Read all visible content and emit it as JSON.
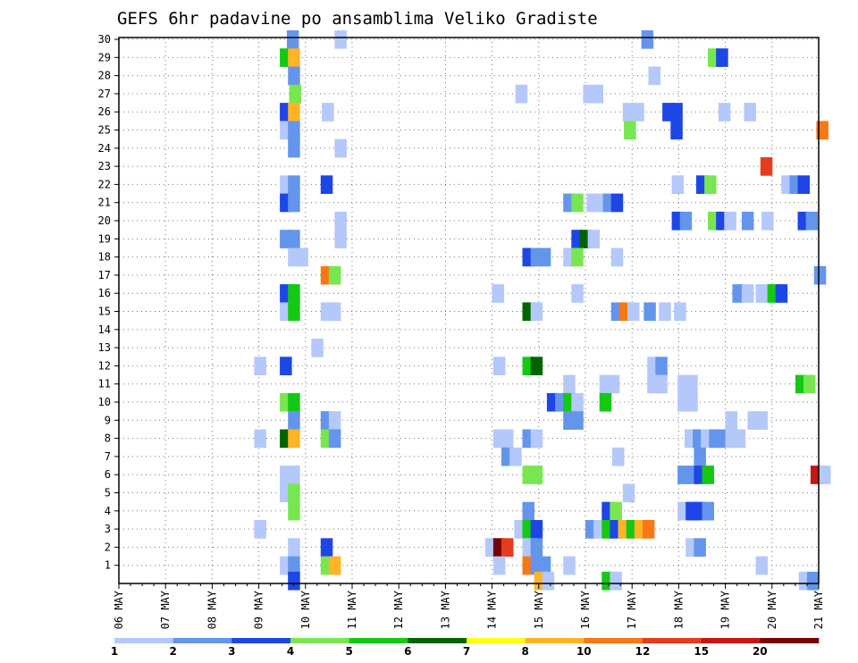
{
  "chart_data": {
    "type": "heatmap",
    "title": "GEFS 6hr padavine po ansamblima Veliko Gradiste",
    "x_labels": [
      "06 MAY",
      "07 MAY",
      "08 MAY",
      "09 MAY",
      "10 MAY",
      "11 MAY",
      "12 MAY",
      "13 MAY",
      "14 MAY",
      "15 MAY",
      "16 MAY",
      "17 MAY",
      "18 MAY",
      "19 MAY",
      "20 MAY",
      "21 MAY"
    ],
    "y_labels": [
      "1",
      "2",
      "3",
      "4",
      "5",
      "6",
      "7",
      "8",
      "9",
      "10",
      "11",
      "12",
      "13",
      "14",
      "15",
      "16",
      "17",
      "18",
      "19",
      "20",
      "21",
      "22",
      "23",
      "24",
      "25",
      "26",
      "27",
      "28",
      "29",
      "30"
    ],
    "x_unit": "6-hour step",
    "grid": "dotted",
    "legend": {
      "labels": [
        "1",
        "2",
        "3",
        "4",
        "5",
        "6",
        "7",
        "8",
        "10",
        "12",
        "15",
        "20"
      ],
      "colors": [
        "#b4c8fa",
        "#6495ed",
        "#1e46e6",
        "#78e650",
        "#14c814",
        "#006400",
        "#ffff14",
        "#ffb428",
        "#fa7814",
        "#e63c1e",
        "#c81414",
        "#780000"
      ]
    },
    "cells": [
      {
        "t": 14.4,
        "m": 30,
        "v": 2
      },
      {
        "t": 18.5,
        "m": 30,
        "v": 1
      },
      {
        "t": 44.8,
        "m": 30,
        "v": 2
      },
      {
        "t": 13.8,
        "m": 29,
        "v": 5
      },
      {
        "t": 14.5,
        "m": 29,
        "v": 8
      },
      {
        "t": 50.5,
        "m": 29,
        "v": 4
      },
      {
        "t": 51.2,
        "m": 29,
        "v": 3
      },
      {
        "t": 14.5,
        "m": 28,
        "v": 2
      },
      {
        "t": 45.4,
        "m": 28,
        "v": 1
      },
      {
        "t": 14.6,
        "m": 27,
        "v": 4
      },
      {
        "t": 34.0,
        "m": 27,
        "v": 1
      },
      {
        "t": 39.8,
        "m": 27,
        "v": 1
      },
      {
        "t": 40.5,
        "m": 27,
        "v": 1
      },
      {
        "t": 13.8,
        "m": 26,
        "v": 3
      },
      {
        "t": 14.5,
        "m": 26,
        "v": 8
      },
      {
        "t": 17.4,
        "m": 26,
        "v": 1
      },
      {
        "t": 43.2,
        "m": 26,
        "v": 1
      },
      {
        "t": 44.0,
        "m": 26,
        "v": 1
      },
      {
        "t": 46.6,
        "m": 26,
        "v": 3
      },
      {
        "t": 47.3,
        "m": 26,
        "v": 3
      },
      {
        "t": 51.4,
        "m": 26,
        "v": 1
      },
      {
        "t": 53.6,
        "m": 26,
        "v": 1
      },
      {
        "t": 13.8,
        "m": 25,
        "v": 1
      },
      {
        "t": 14.5,
        "m": 25,
        "v": 2
      },
      {
        "t": 43.3,
        "m": 25,
        "v": 4
      },
      {
        "t": 47.3,
        "m": 25,
        "v": 3
      },
      {
        "t": 59.8,
        "m": 25,
        "v": 9
      },
      {
        "t": 14.5,
        "m": 24,
        "v": 2
      },
      {
        "t": 18.5,
        "m": 24,
        "v": 1
      },
      {
        "t": 55.0,
        "m": 23,
        "v": 10
      },
      {
        "t": 13.8,
        "m": 22,
        "v": 1
      },
      {
        "t": 14.5,
        "m": 22,
        "v": 2
      },
      {
        "t": 17.3,
        "m": 22,
        "v": 3
      },
      {
        "t": 47.4,
        "m": 22,
        "v": 1
      },
      {
        "t": 49.5,
        "m": 22,
        "v": 3
      },
      {
        "t": 50.2,
        "m": 22,
        "v": 4
      },
      {
        "t": 56.8,
        "m": 22,
        "v": 1
      },
      {
        "t": 57.5,
        "m": 22,
        "v": 2
      },
      {
        "t": 58.2,
        "m": 22,
        "v": 3
      },
      {
        "t": 13.8,
        "m": 21,
        "v": 3
      },
      {
        "t": 14.5,
        "m": 21,
        "v": 2
      },
      {
        "t": 38.1,
        "m": 21,
        "v": 2
      },
      {
        "t": 38.8,
        "m": 21,
        "v": 4
      },
      {
        "t": 40.1,
        "m": 21,
        "v": 1
      },
      {
        "t": 40.8,
        "m": 21,
        "v": 1
      },
      {
        "t": 41.5,
        "m": 21,
        "v": 2
      },
      {
        "t": 42.2,
        "m": 21,
        "v": 3
      },
      {
        "t": 47.4,
        "m": 20,
        "v": 3
      },
      {
        "t": 48.1,
        "m": 20,
        "v": 2
      },
      {
        "t": 50.5,
        "m": 20,
        "v": 4
      },
      {
        "t": 51.2,
        "m": 20,
        "v": 3
      },
      {
        "t": 51.9,
        "m": 20,
        "v": 1
      },
      {
        "t": 53.4,
        "m": 20,
        "v": 2
      },
      {
        "t": 55.1,
        "m": 20,
        "v": 1
      },
      {
        "t": 58.2,
        "m": 20,
        "v": 3
      },
      {
        "t": 58.9,
        "m": 20,
        "v": 2
      },
      {
        "t": 18.5,
        "m": 20,
        "v": 1
      },
      {
        "t": 18.5,
        "m": 19,
        "v": 1
      },
      {
        "t": 13.8,
        "m": 19,
        "v": 2
      },
      {
        "t": 14.5,
        "m": 19,
        "v": 2
      },
      {
        "t": 38.8,
        "m": 19,
        "v": 3
      },
      {
        "t": 39.5,
        "m": 19,
        "v": 6
      },
      {
        "t": 40.2,
        "m": 19,
        "v": 1
      },
      {
        "t": 14.5,
        "m": 18,
        "v": 1
      },
      {
        "t": 15.2,
        "m": 18,
        "v": 1
      },
      {
        "t": 34.6,
        "m": 18,
        "v": 3
      },
      {
        "t": 35.3,
        "m": 18,
        "v": 2
      },
      {
        "t": 36.0,
        "m": 18,
        "v": 2
      },
      {
        "t": 38.1,
        "m": 18,
        "v": 1
      },
      {
        "t": 38.8,
        "m": 18,
        "v": 4
      },
      {
        "t": 42.2,
        "m": 18,
        "v": 1
      },
      {
        "t": 17.3,
        "m": 17,
        "v": 9
      },
      {
        "t": 18.0,
        "m": 17,
        "v": 4
      },
      {
        "t": 59.6,
        "m": 17,
        "v": 2
      },
      {
        "t": 13.8,
        "m": 16,
        "v": 3
      },
      {
        "t": 14.5,
        "m": 16,
        "v": 5
      },
      {
        "t": 32.0,
        "m": 16,
        "v": 1
      },
      {
        "t": 38.8,
        "m": 16,
        "v": 1
      },
      {
        "t": 52.6,
        "m": 16,
        "v": 2
      },
      {
        "t": 53.4,
        "m": 16,
        "v": 1
      },
      {
        "t": 54.6,
        "m": 16,
        "v": 1
      },
      {
        "t": 55.6,
        "m": 16,
        "v": 5
      },
      {
        "t": 56.3,
        "m": 16,
        "v": 3
      },
      {
        "t": 13.8,
        "m": 15,
        "v": 1
      },
      {
        "t": 14.5,
        "m": 15,
        "v": 5
      },
      {
        "t": 17.3,
        "m": 15,
        "v": 1
      },
      {
        "t": 18.0,
        "m": 15,
        "v": 1
      },
      {
        "t": 34.6,
        "m": 15,
        "v": 6
      },
      {
        "t": 35.3,
        "m": 15,
        "v": 1
      },
      {
        "t": 42.2,
        "m": 15,
        "v": 2
      },
      {
        "t": 42.9,
        "m": 15,
        "v": 9
      },
      {
        "t": 43.6,
        "m": 15,
        "v": 1
      },
      {
        "t": 45.0,
        "m": 15,
        "v": 2
      },
      {
        "t": 46.3,
        "m": 15,
        "v": 1
      },
      {
        "t": 47.6,
        "m": 15,
        "v": 1
      },
      {
        "t": 16.5,
        "m": 13,
        "v": 1
      },
      {
        "t": 13.8,
        "m": 12,
        "v": 3
      },
      {
        "t": 32.1,
        "m": 12,
        "v": 1
      },
      {
        "t": 34.6,
        "m": 12,
        "v": 5
      },
      {
        "t": 35.3,
        "m": 12,
        "v": 6
      },
      {
        "t": 45.3,
        "m": 12,
        "v": 1
      },
      {
        "t": 46.0,
        "m": 12,
        "v": 2
      },
      {
        "t": 11.6,
        "m": 12,
        "v": 1
      },
      {
        "t": 38.1,
        "m": 11,
        "v": 1
      },
      {
        "t": 41.2,
        "m": 11,
        "v": 1
      },
      {
        "t": 41.9,
        "m": 11,
        "v": 1
      },
      {
        "t": 45.3,
        "m": 11,
        "v": 1
      },
      {
        "t": 46.0,
        "m": 11,
        "v": 1
      },
      {
        "t": 47.9,
        "m": 11,
        "v": 1
      },
      {
        "t": 48.6,
        "m": 11,
        "v": 1
      },
      {
        "t": 58.0,
        "m": 11,
        "v": 5
      },
      {
        "t": 58.7,
        "m": 11,
        "v": 4
      },
      {
        "t": 13.8,
        "m": 10,
        "v": 4
      },
      {
        "t": 14.5,
        "m": 10,
        "v": 5
      },
      {
        "t": 36.7,
        "m": 10,
        "v": 3
      },
      {
        "t": 37.4,
        "m": 10,
        "v": 2
      },
      {
        "t": 38.1,
        "m": 10,
        "v": 5
      },
      {
        "t": 38.8,
        "m": 10,
        "v": 1
      },
      {
        "t": 41.2,
        "m": 10,
        "v": 5
      },
      {
        "t": 47.9,
        "m": 10,
        "v": 1
      },
      {
        "t": 48.6,
        "m": 10,
        "v": 1
      },
      {
        "t": 14.5,
        "m": 9,
        "v": 2
      },
      {
        "t": 17.3,
        "m": 9,
        "v": 2
      },
      {
        "t": 18.0,
        "m": 9,
        "v": 1
      },
      {
        "t": 38.1,
        "m": 9,
        "v": 2
      },
      {
        "t": 38.8,
        "m": 9,
        "v": 2
      },
      {
        "t": 52.0,
        "m": 9,
        "v": 1
      },
      {
        "t": 53.9,
        "m": 9,
        "v": 1
      },
      {
        "t": 54.6,
        "m": 9,
        "v": 1
      },
      {
        "t": 11.6,
        "m": 8,
        "v": 1
      },
      {
        "t": 13.8,
        "m": 8,
        "v": 6
      },
      {
        "t": 14.5,
        "m": 8,
        "v": 8
      },
      {
        "t": 17.3,
        "m": 8,
        "v": 4
      },
      {
        "t": 18.0,
        "m": 8,
        "v": 2
      },
      {
        "t": 32.1,
        "m": 8,
        "v": 1
      },
      {
        "t": 32.8,
        "m": 8,
        "v": 1
      },
      {
        "t": 34.6,
        "m": 8,
        "v": 2
      },
      {
        "t": 35.3,
        "m": 8,
        "v": 1
      },
      {
        "t": 48.5,
        "m": 8,
        "v": 1
      },
      {
        "t": 49.2,
        "m": 8,
        "v": 2
      },
      {
        "t": 49.9,
        "m": 8,
        "v": 1
      },
      {
        "t": 50.6,
        "m": 8,
        "v": 2
      },
      {
        "t": 51.3,
        "m": 8,
        "v": 2
      },
      {
        "t": 52.0,
        "m": 8,
        "v": 1
      },
      {
        "t": 52.7,
        "m": 8,
        "v": 1
      },
      {
        "t": 32.8,
        "m": 7,
        "v": 2
      },
      {
        "t": 33.5,
        "m": 7,
        "v": 1
      },
      {
        "t": 42.3,
        "m": 7,
        "v": 1
      },
      {
        "t": 49.3,
        "m": 7,
        "v": 2
      },
      {
        "t": 13.8,
        "m": 6,
        "v": 1
      },
      {
        "t": 14.5,
        "m": 6,
        "v": 1
      },
      {
        "t": 34.6,
        "m": 6,
        "v": 4
      },
      {
        "t": 35.3,
        "m": 6,
        "v": 4
      },
      {
        "t": 47.9,
        "m": 6,
        "v": 2
      },
      {
        "t": 48.6,
        "m": 6,
        "v": 2
      },
      {
        "t": 49.3,
        "m": 6,
        "v": 3
      },
      {
        "t": 50.0,
        "m": 6,
        "v": 5
      },
      {
        "t": 59.3,
        "m": 6,
        "v": 11
      },
      {
        "t": 60.0,
        "m": 6,
        "v": 1
      },
      {
        "t": 13.8,
        "m": 5,
        "v": 1
      },
      {
        "t": 14.5,
        "m": 5,
        "v": 4
      },
      {
        "t": 43.2,
        "m": 5,
        "v": 1
      },
      {
        "t": 14.5,
        "m": 4,
        "v": 4
      },
      {
        "t": 34.6,
        "m": 4,
        "v": 2
      },
      {
        "t": 41.4,
        "m": 4,
        "v": 3
      },
      {
        "t": 42.1,
        "m": 4,
        "v": 4
      },
      {
        "t": 47.9,
        "m": 4,
        "v": 1
      },
      {
        "t": 48.6,
        "m": 4,
        "v": 3
      },
      {
        "t": 49.3,
        "m": 4,
        "v": 3
      },
      {
        "t": 50.0,
        "m": 4,
        "v": 2
      },
      {
        "t": 11.6,
        "m": 3,
        "v": 1
      },
      {
        "t": 33.9,
        "m": 3,
        "v": 1
      },
      {
        "t": 34.6,
        "m": 3,
        "v": 5
      },
      {
        "t": 35.3,
        "m": 3,
        "v": 3
      },
      {
        "t": 40.0,
        "m": 3,
        "v": 2
      },
      {
        "t": 40.7,
        "m": 3,
        "v": 1
      },
      {
        "t": 41.4,
        "m": 3,
        "v": 5
      },
      {
        "t": 42.1,
        "m": 3,
        "v": 3
      },
      {
        "t": 42.8,
        "m": 3,
        "v": 8
      },
      {
        "t": 43.5,
        "m": 3,
        "v": 5
      },
      {
        "t": 44.2,
        "m": 3,
        "v": 8
      },
      {
        "t": 44.9,
        "m": 3,
        "v": 9
      },
      {
        "t": 14.5,
        "m": 2,
        "v": 1
      },
      {
        "t": 17.3,
        "m": 2,
        "v": 3
      },
      {
        "t": 31.4,
        "m": 2,
        "v": 1
      },
      {
        "t": 32.1,
        "m": 2,
        "v": 12
      },
      {
        "t": 32.8,
        "m": 2,
        "v": 10
      },
      {
        "t": 34.6,
        "m": 2,
        "v": 1
      },
      {
        "t": 35.3,
        "m": 2,
        "v": 2
      },
      {
        "t": 48.6,
        "m": 2,
        "v": 1
      },
      {
        "t": 49.3,
        "m": 2,
        "v": 2
      },
      {
        "t": 13.8,
        "m": 1,
        "v": 1
      },
      {
        "t": 14.5,
        "m": 1,
        "v": 2
      },
      {
        "t": 17.3,
        "m": 1,
        "v": 4
      },
      {
        "t": 18.0,
        "m": 1,
        "v": 8
      },
      {
        "t": 32.1,
        "m": 1,
        "v": 1
      },
      {
        "t": 34.6,
        "m": 1,
        "v": 9
      },
      {
        "t": 35.3,
        "m": 1,
        "v": 2
      },
      {
        "t": 36.0,
        "m": 1,
        "v": 2
      },
      {
        "t": 38.1,
        "m": 1,
        "v": 1
      },
      {
        "t": 54.6,
        "m": 1,
        "v": 1
      },
      {
        "t": 14.5,
        "m": 0.15,
        "v": 3
      },
      {
        "t": 35.6,
        "m": 0.15,
        "v": 8
      },
      {
        "t": 36.3,
        "m": 0.15,
        "v": 1
      },
      {
        "t": 41.4,
        "m": 0.15,
        "v": 5
      },
      {
        "t": 42.1,
        "m": 0.15,
        "v": 1
      },
      {
        "t": 58.3,
        "m": 0.15,
        "v": 1
      },
      {
        "t": 59.0,
        "m": 0.15,
        "v": 2
      }
    ]
  }
}
